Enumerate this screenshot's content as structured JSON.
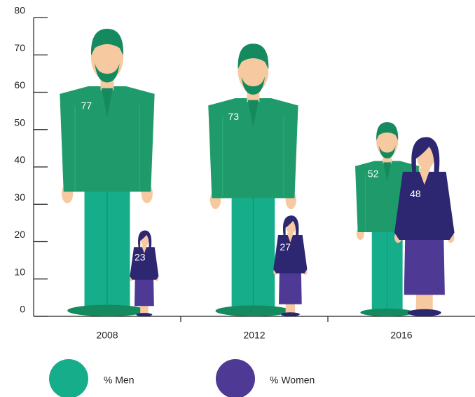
{
  "chart_data": {
    "type": "pictograph",
    "categories": [
      "2008",
      "2012",
      "2016"
    ],
    "series": [
      {
        "name": "% Men",
        "color": "#16ad8a",
        "values": [
          77,
          73,
          52
        ]
      },
      {
        "name": "% Women",
        "color": "#4e3a94",
        "values": [
          23,
          27,
          48
        ]
      }
    ],
    "ylim": [
      0,
      80
    ],
    "yticks": [
      0,
      10,
      20,
      30,
      40,
      50,
      60,
      70,
      80
    ]
  }
}
